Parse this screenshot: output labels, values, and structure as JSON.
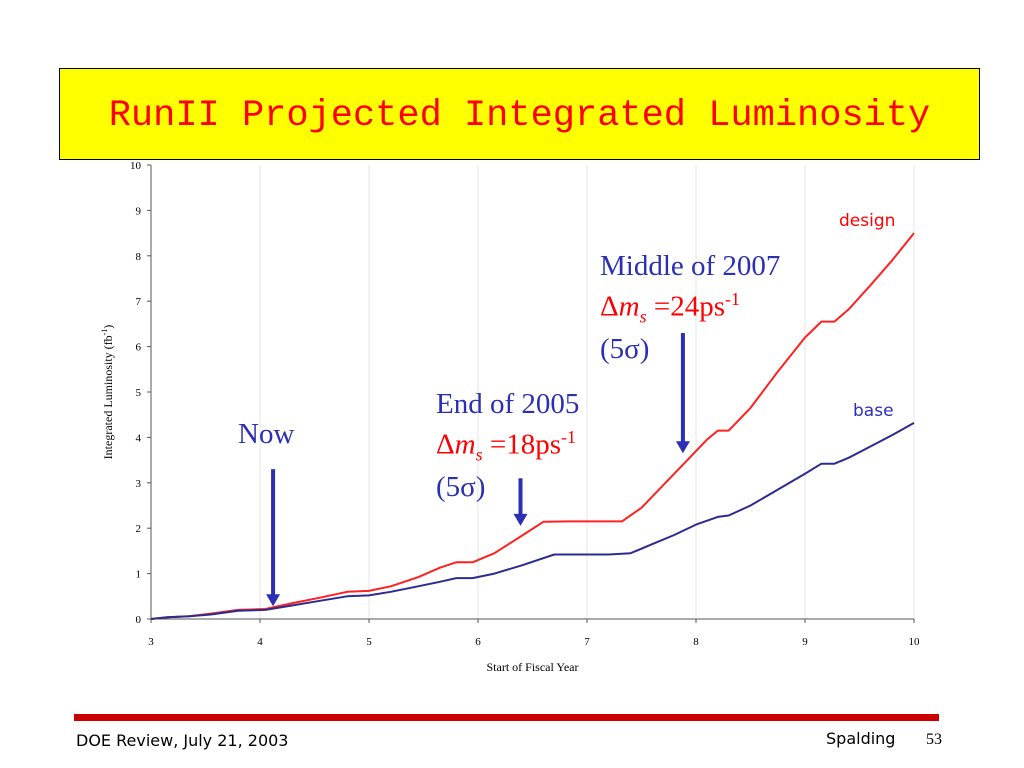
{
  "slide": {
    "title": "RunII Projected Integrated Luminosity",
    "footer_left": "DOE Review, July 21, 2003",
    "footer_author": "Spalding",
    "page_number": "53"
  },
  "colors": {
    "title_bg": "#ffff00",
    "title_text": "#ff0000",
    "design_line": "#ff2020",
    "base_line": "#2b2b90",
    "annotation_blue": "#2b2fb3",
    "annotation_red": "#ff0000",
    "footer_rule": "#cc0000"
  },
  "annotations": {
    "now": "Now",
    "end_2005": {
      "line1": "End of 2005",
      "delta": "Δ",
      "m": "m",
      "s": "s",
      "eq": " =18ps",
      "exp": "-1",
      "sigma": "(5σ)"
    },
    "mid_2007": {
      "line1": "Middle of 2007",
      "delta": "Δ",
      "m": "m",
      "s": "s",
      "eq": " =24ps",
      "exp": "-1",
      "sigma": "(5σ)"
    }
  },
  "chart_data": {
    "type": "line",
    "xlabel": "Start of Fiscal Year",
    "ylabel": "Integrated Luminosity  (fb",
    "ylabel_exp": "-1",
    "ylabel_close": ")",
    "xlim": [
      3,
      10
    ],
    "ylim": [
      0,
      10
    ],
    "xticks": [
      3,
      4,
      5,
      6,
      7,
      8,
      9,
      10
    ],
    "yticks": [
      0,
      1,
      2,
      3,
      4,
      5,
      6,
      7,
      8,
      9,
      10
    ],
    "grid": "vertical",
    "series": [
      {
        "name": "design",
        "color": "#ff2020",
        "x": [
          3.0,
          3.15,
          3.35,
          3.55,
          3.8,
          4.05,
          4.3,
          4.55,
          4.8,
          5.0,
          5.2,
          5.45,
          5.65,
          5.8,
          5.95,
          6.15,
          6.4,
          6.6,
          6.85,
          7.1,
          7.32,
          7.5,
          7.7,
          7.9,
          8.1,
          8.2,
          8.3,
          8.5,
          8.75,
          9.0,
          9.15,
          9.27,
          9.4,
          9.6,
          9.8,
          10.0
        ],
        "y": [
          0.0,
          0.04,
          0.06,
          0.12,
          0.2,
          0.22,
          0.35,
          0.47,
          0.6,
          0.62,
          0.72,
          0.92,
          1.13,
          1.25,
          1.25,
          1.45,
          1.83,
          2.14,
          2.15,
          2.15,
          2.15,
          2.45,
          2.95,
          3.45,
          3.95,
          4.15,
          4.15,
          4.65,
          5.45,
          6.2,
          6.55,
          6.55,
          6.82,
          7.35,
          7.9,
          8.5
        ]
      },
      {
        "name": "base",
        "color": "#2b2b90",
        "x": [
          3.0,
          3.15,
          3.35,
          3.55,
          3.8,
          4.05,
          4.3,
          4.55,
          4.8,
          5.0,
          5.2,
          5.45,
          5.65,
          5.8,
          5.95,
          6.15,
          6.4,
          6.7,
          6.95,
          7.2,
          7.4,
          7.6,
          7.8,
          8.0,
          8.2,
          8.3,
          8.5,
          8.75,
          9.0,
          9.15,
          9.27,
          9.4,
          9.6,
          9.8,
          10.0
        ],
        "y": [
          0.0,
          0.04,
          0.06,
          0.1,
          0.18,
          0.2,
          0.3,
          0.4,
          0.5,
          0.52,
          0.6,
          0.72,
          0.82,
          0.9,
          0.9,
          1.0,
          1.18,
          1.42,
          1.42,
          1.42,
          1.45,
          1.65,
          1.85,
          2.08,
          2.25,
          2.28,
          2.5,
          2.85,
          3.2,
          3.42,
          3.42,
          3.55,
          3.8,
          4.05,
          4.32
        ]
      }
    ],
    "arrows": [
      {
        "name": "now-arrow",
        "x": 4.12,
        "y_from": 3.3,
        "y_to": 0.28
      },
      {
        "name": "end-2005-arrow",
        "x": 6.39,
        "y_from": 3.1,
        "y_to": 2.05
      },
      {
        "name": "mid-2007-arrow",
        "x": 7.88,
        "y_from": 6.3,
        "y_to": 3.65
      }
    ]
  }
}
